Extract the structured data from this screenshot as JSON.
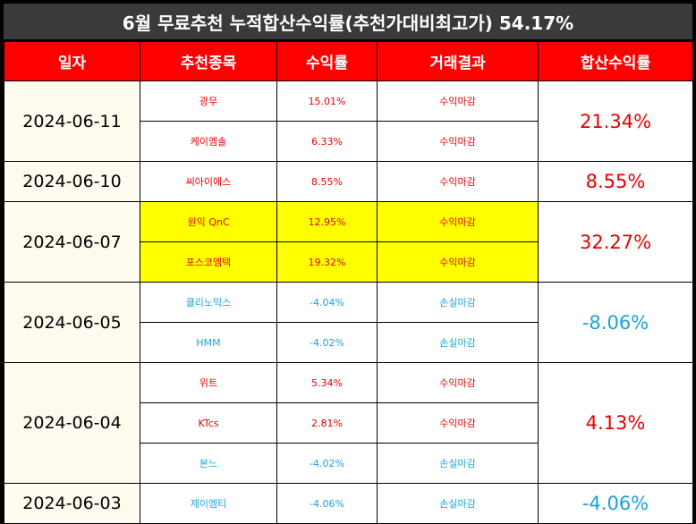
{
  "title": "6월 무료추천 누적합산수익률(추천가대비최고가) 54.17%",
  "headers": [
    "일자",
    "추천종목",
    "수익률",
    "거래결과",
    "합산수익률"
  ],
  "colors": {
    "profit": "#e60000",
    "loss": "#1aa3d9",
    "header_bg": "#ff0000",
    "highlight": "#ffff00"
  },
  "groups": [
    {
      "date": "2024-06-11",
      "total": "21.34%",
      "total_type": "profit",
      "rows": [
        {
          "stock": "광무",
          "return": "15.01%",
          "result": "수익마감",
          "type": "profit",
          "highlight": false
        },
        {
          "stock": "케이엠솔",
          "return": "6.33%",
          "result": "수익마감",
          "type": "profit",
          "highlight": false
        }
      ]
    },
    {
      "date": "2024-06-10",
      "total": "8.55%",
      "total_type": "profit",
      "rows": [
        {
          "stock": "씨아이에스",
          "return": "8.55%",
          "result": "수익마감",
          "type": "profit",
          "highlight": false
        }
      ]
    },
    {
      "date": "2024-06-07",
      "total": "32.27%",
      "total_type": "profit",
      "rows": [
        {
          "stock": "원익 QnC",
          "return": "12.95%",
          "result": "수익마감",
          "type": "profit",
          "highlight": true
        },
        {
          "stock": "포스코엠텍",
          "return": "19.32%",
          "result": "수익마감",
          "type": "profit",
          "highlight": true
        }
      ]
    },
    {
      "date": "2024-06-05",
      "total": "-8.06%",
      "total_type": "loss",
      "rows": [
        {
          "stock": "클리노믹스",
          "return": "-4.04%",
          "result": "손실마감",
          "type": "loss",
          "highlight": false
        },
        {
          "stock": "HMM",
          "return": "-4.02%",
          "result": "손실마감",
          "type": "loss",
          "highlight": false
        }
      ]
    },
    {
      "date": "2024-06-04",
      "total": "4.13%",
      "total_type": "profit",
      "rows": [
        {
          "stock": "위트",
          "return": "5.34%",
          "result": "수익마감",
          "type": "profit",
          "highlight": false
        },
        {
          "stock": "KTcs",
          "return": "2.81%",
          "result": "수익마감",
          "type": "profit",
          "highlight": false
        },
        {
          "stock": "본느",
          "return": "-4.02%",
          "result": "손실마감",
          "type": "loss",
          "highlight": false
        }
      ]
    },
    {
      "date": "2024-06-03",
      "total": "-4.06%",
      "total_type": "loss",
      "rows": [
        {
          "stock": "제이엠티",
          "return": "-4.06%",
          "result": "손실마감",
          "type": "loss",
          "highlight": false
        }
      ]
    }
  ]
}
